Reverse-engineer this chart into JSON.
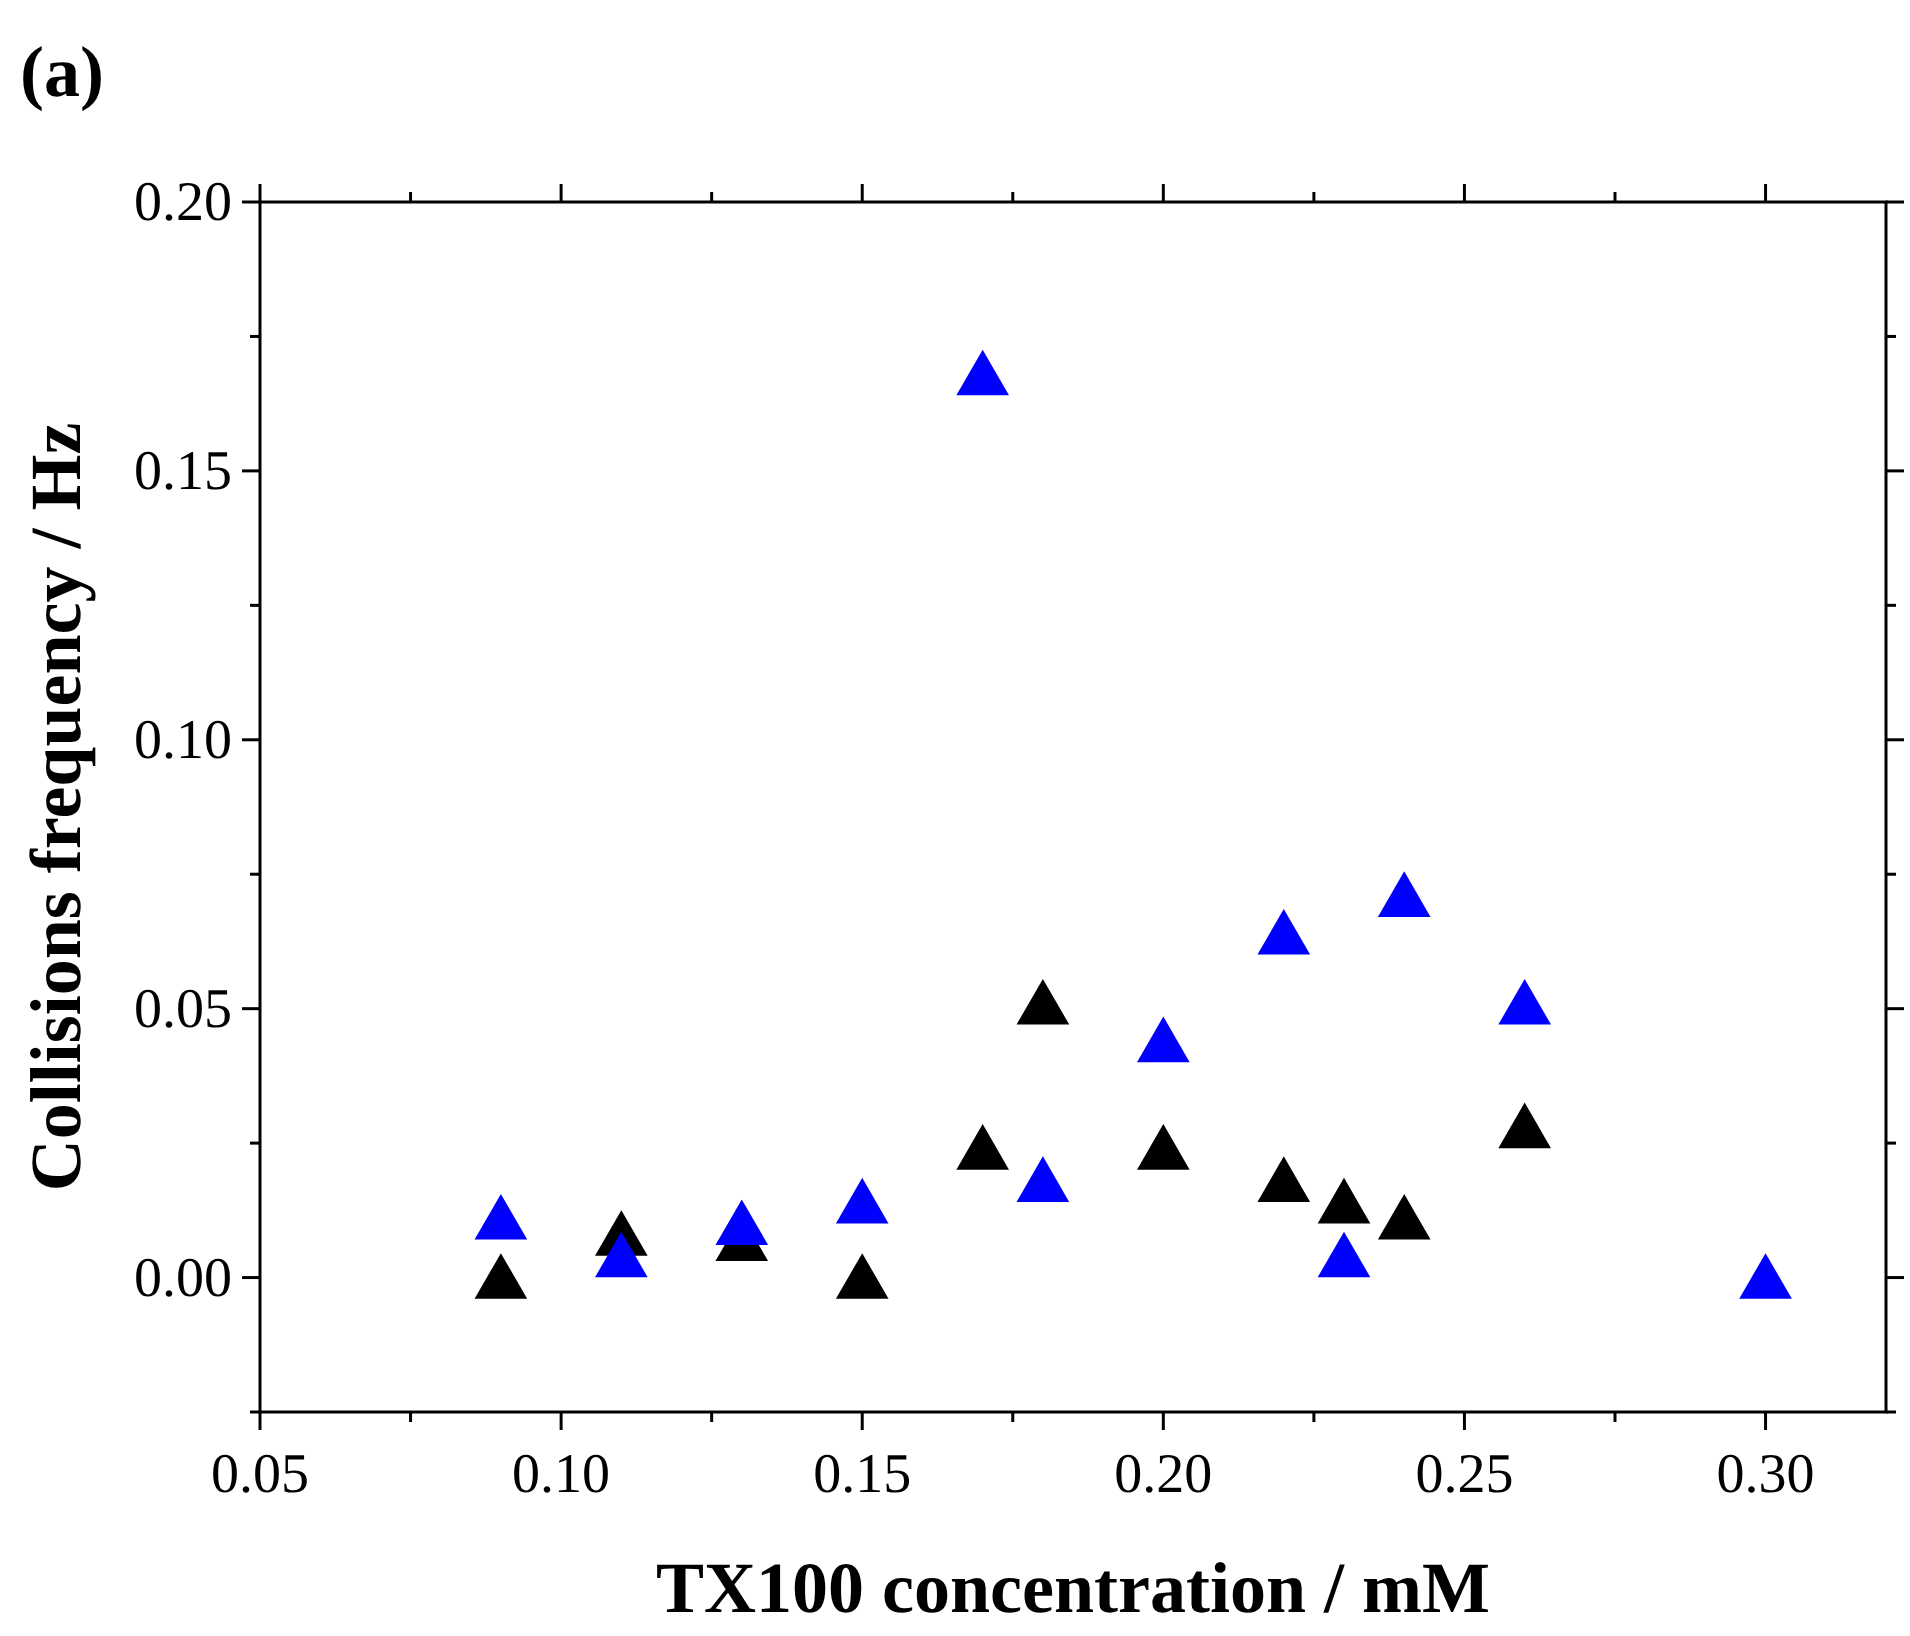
{
  "chart_data": {
    "type": "scatter",
    "xlabel": "TX100 concentration / mM",
    "ylabel": "Collisions frequency / Hz",
    "annotations": [
      "(a)"
    ],
    "xlim": [
      0.05,
      0.32
    ],
    "ylim": [
      -0.025,
      0.2
    ],
    "xticks": [
      {
        "value": 0.05,
        "label": "0.05"
      },
      {
        "value": 0.075,
        "label": null
      },
      {
        "value": 0.1,
        "label": "0.10"
      },
      {
        "value": 0.125,
        "label": null
      },
      {
        "value": 0.15,
        "label": "0.15"
      },
      {
        "value": 0.175,
        "label": null
      },
      {
        "value": 0.2,
        "label": "0.20"
      },
      {
        "value": 0.225,
        "label": null
      },
      {
        "value": 0.25,
        "label": "0.25"
      },
      {
        "value": 0.275,
        "label": null
      },
      {
        "value": 0.3,
        "label": "0.30"
      }
    ],
    "yticks": [
      {
        "value": -0.025,
        "label": null
      },
      {
        "value": 0,
        "label": "0.00"
      },
      {
        "value": 0.025,
        "label": null
      },
      {
        "value": 0.05,
        "label": "0.05"
      },
      {
        "value": 0.075,
        "label": null
      },
      {
        "value": 0.1,
        "label": "0.10"
      },
      {
        "value": 0.125,
        "label": null
      },
      {
        "value": 0.15,
        "label": "0.15"
      },
      {
        "value": 0.175,
        "label": null
      },
      {
        "value": 0.2,
        "label": "0.20"
      }
    ],
    "marker": "triangle",
    "grid": false,
    "series": [
      {
        "color": "#000000",
        "x": [
          0.09,
          0.11,
          0.13,
          0.15,
          0.17,
          0.18,
          0.2,
          0.22,
          0.23,
          0.24,
          0.26
        ],
        "values": [
          0.0,
          0.008,
          0.007,
          0.0,
          0.024,
          0.051,
          0.024,
          0.018,
          0.014,
          0.011,
          0.028
        ]
      },
      {
        "color": "#0000ff",
        "x": [
          0.09,
          0.11,
          0.13,
          0.15,
          0.17,
          0.18,
          0.2,
          0.22,
          0.23,
          0.24,
          0.26,
          0.3
        ],
        "values": [
          0.011,
          0.004,
          0.01,
          0.014,
          0.168,
          0.018,
          0.044,
          0.064,
          0.004,
          0.071,
          0.051,
          0.0
        ]
      }
    ]
  }
}
